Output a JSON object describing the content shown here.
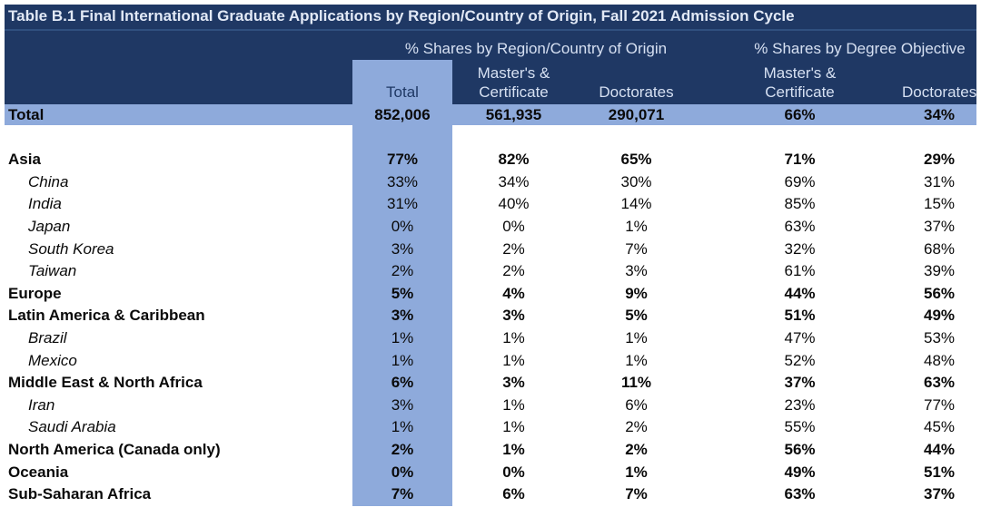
{
  "title": "Table B.1 Final International Graduate Applications by Region/Country of Origin, Fall 2021 Admission Cycle",
  "colors": {
    "header_navy": "#1F3864",
    "highlight_blue": "#8EAADB",
    "header_text": "#D6E0F2",
    "body_text": "#000000"
  },
  "group_headers": {
    "left": "% Shares by Region/Country of Origin",
    "right": "% Shares by Degree Objective"
  },
  "column_headers": {
    "total": "Total",
    "masters_cert_1": "Master's &\nCertificate",
    "doctorates_1": "Doctorates",
    "masters_cert_2": "Master's &\nCertificate",
    "doctorates_2": "Doctorates"
  },
  "total_row": {
    "label": "Total",
    "values": [
      "852,006",
      "561,935",
      "290,071",
      "66%",
      "34%"
    ]
  },
  "rows": [
    {
      "label": "Asia",
      "style": "region",
      "values": [
        "77%",
        "82%",
        "65%",
        "71%",
        "29%"
      ]
    },
    {
      "label": "China",
      "style": "country",
      "values": [
        "33%",
        "34%",
        "30%",
        "69%",
        "31%"
      ]
    },
    {
      "label": "India",
      "style": "country",
      "values": [
        "31%",
        "40%",
        "14%",
        "85%",
        "15%"
      ]
    },
    {
      "label": "Japan",
      "style": "country",
      "values": [
        "0%",
        "0%",
        "1%",
        "63%",
        "37%"
      ]
    },
    {
      "label": "South Korea",
      "style": "country",
      "values": [
        "3%",
        "2%",
        "7%",
        "32%",
        "68%"
      ]
    },
    {
      "label": "Taiwan",
      "style": "country",
      "values": [
        "2%",
        "2%",
        "3%",
        "61%",
        "39%"
      ]
    },
    {
      "label": "Europe",
      "style": "region",
      "values": [
        "5%",
        "4%",
        "9%",
        "44%",
        "56%"
      ]
    },
    {
      "label": "Latin America & Caribbean",
      "style": "region",
      "values": [
        "3%",
        "3%",
        "5%",
        "51%",
        "49%"
      ]
    },
    {
      "label": "Brazil",
      "style": "country",
      "values": [
        "1%",
        "1%",
        "1%",
        "47%",
        "53%"
      ]
    },
    {
      "label": "Mexico",
      "style": "country",
      "values": [
        "1%",
        "1%",
        "1%",
        "52%",
        "48%"
      ]
    },
    {
      "label": "Middle East & North Africa",
      "style": "region",
      "values": [
        "6%",
        "3%",
        "11%",
        "37%",
        "63%"
      ]
    },
    {
      "label": "Iran",
      "style": "country",
      "values": [
        "3%",
        "1%",
        "6%",
        "23%",
        "77%"
      ]
    },
    {
      "label": "Saudi Arabia",
      "style": "country",
      "values": [
        "1%",
        "1%",
        "2%",
        "55%",
        "45%"
      ]
    },
    {
      "label": "North America (Canada only)",
      "style": "region",
      "values": [
        "2%",
        "1%",
        "2%",
        "56%",
        "44%"
      ]
    },
    {
      "label": "Oceania",
      "style": "region",
      "values": [
        "0%",
        "0%",
        "1%",
        "49%",
        "51%"
      ]
    },
    {
      "label": "Sub-Saharan Africa",
      "style": "region",
      "values": [
        "7%",
        "6%",
        "7%",
        "63%",
        "37%"
      ]
    }
  ]
}
